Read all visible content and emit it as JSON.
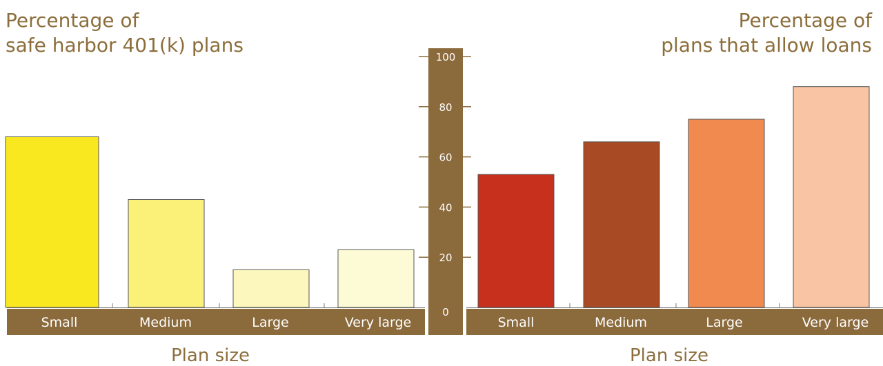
{
  "chart_data": [
    {
      "type": "bar",
      "title": [
        "Percentage of",
        "safe harbor 401(k) plans"
      ],
      "xlabel": "Plan size",
      "categories": [
        "Small",
        "Medium",
        "Large",
        "Very large"
      ],
      "values": [
        68,
        43,
        15,
        23
      ],
      "colors": [
        "#f9e81f",
        "#fbf179",
        "#fcf8bd",
        "#fdfbd6"
      ],
      "ylim": [
        0,
        100
      ]
    },
    {
      "type": "bar",
      "title": [
        "Percentage of",
        "plans that allow loans"
      ],
      "xlabel": "Plan size",
      "categories": [
        "Small",
        "Medium",
        "Large",
        "Very large"
      ],
      "values": [
        53,
        66,
        75,
        88
      ],
      "colors": [
        "#c8301e",
        "#a84a23",
        "#f08a4f",
        "#f8c4a4"
      ],
      "ylim": [
        0,
        100
      ]
    }
  ],
  "axis": {
    "ticks": [
      0,
      20,
      40,
      60,
      80,
      100
    ]
  },
  "colors": {
    "axis_band": "#8b6a3c",
    "title_text": "#8c6e3c"
  }
}
